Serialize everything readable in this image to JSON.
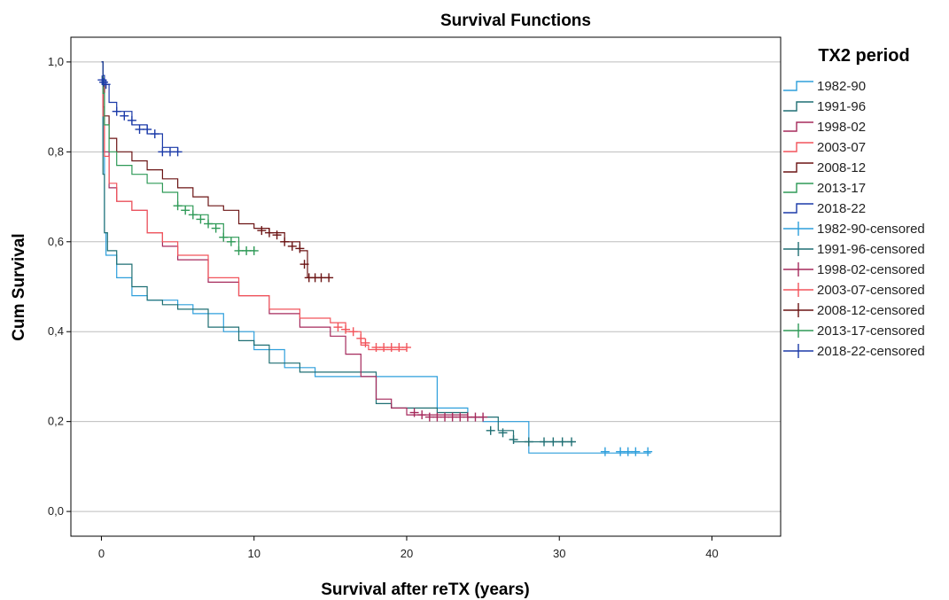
{
  "chart_data": {
    "type": "line",
    "title": "Survival Functions",
    "xlabel": "Survival after reTX (years)",
    "ylabel": "Cum Survival",
    "xlim": [
      -2,
      44.5
    ],
    "ylim": [
      -0.055,
      1.055
    ],
    "xticks": [
      0,
      10,
      20,
      30,
      40
    ],
    "xtick_labels": [
      "0",
      "10",
      "20",
      "30",
      "40"
    ],
    "yticks": [
      0,
      0.2,
      0.4,
      0.6,
      0.8,
      1.0
    ],
    "ytick_labels": [
      "0,0",
      "0,2",
      "0,4",
      "0,6",
      "0,8",
      "1,0"
    ],
    "grid": "horizontal",
    "legend": {
      "title": "TX2 period",
      "position": "right"
    },
    "series": [
      {
        "name": "1982-90",
        "color": "#2e9fdc",
        "x": [
          0,
          0.1,
          0.2,
          0.3,
          0.6,
          1,
          2,
          3,
          5,
          6,
          8,
          10,
          12,
          14,
          18,
          22,
          24,
          25,
          28,
          36
        ],
        "y": [
          1.0,
          0.8,
          0.62,
          0.57,
          0.57,
          0.52,
          0.48,
          0.47,
          0.46,
          0.44,
          0.4,
          0.36,
          0.32,
          0.3,
          0.3,
          0.23,
          0.21,
          0.2,
          0.13,
          0.13
        ],
        "censored": [
          [
            33,
            0.133
          ],
          [
            34,
            0.133
          ],
          [
            34.5,
            0.133
          ],
          [
            35,
            0.133
          ],
          [
            35.8,
            0.133
          ]
        ]
      },
      {
        "name": "1991-96",
        "color": "#1f6f73",
        "x": [
          0,
          0.1,
          0.2,
          0.4,
          1,
          2,
          3,
          4,
          5,
          7,
          9,
          10,
          11,
          13,
          16,
          18,
          19,
          22,
          24,
          26,
          27,
          31
        ],
        "y": [
          1.0,
          0.75,
          0.62,
          0.58,
          0.55,
          0.5,
          0.47,
          0.46,
          0.45,
          0.41,
          0.38,
          0.37,
          0.33,
          0.31,
          0.31,
          0.24,
          0.23,
          0.22,
          0.21,
          0.18,
          0.155,
          0.155
        ],
        "censored": [
          [
            25.5,
            0.18
          ],
          [
            26.3,
            0.175
          ],
          [
            27,
            0.16
          ],
          [
            28,
            0.155
          ],
          [
            29,
            0.155
          ],
          [
            29.6,
            0.155
          ],
          [
            30.2,
            0.155
          ],
          [
            30.8,
            0.155
          ]
        ]
      },
      {
        "name": "1998-02",
        "color": "#a62a5c",
        "x": [
          0,
          0.1,
          0.2,
          0.5,
          1,
          2,
          3,
          4,
          5,
          7,
          9,
          11,
          13,
          14,
          15,
          16,
          17,
          18,
          19,
          20,
          24,
          25
        ],
        "y": [
          1.0,
          0.9,
          0.8,
          0.72,
          0.69,
          0.67,
          0.62,
          0.59,
          0.56,
          0.51,
          0.48,
          0.44,
          0.41,
          0.41,
          0.39,
          0.35,
          0.3,
          0.25,
          0.23,
          0.215,
          0.21,
          0.21
        ],
        "censored": [
          [
            20.5,
            0.22
          ],
          [
            21,
            0.215
          ],
          [
            21.5,
            0.21
          ],
          [
            22,
            0.21
          ],
          [
            22.5,
            0.21
          ],
          [
            23,
            0.21
          ],
          [
            23.5,
            0.21
          ],
          [
            24,
            0.21
          ],
          [
            24.5,
            0.21
          ],
          [
            25,
            0.21
          ]
        ]
      },
      {
        "name": "2003-07",
        "color": "#f2545b",
        "x": [
          0,
          0.1,
          0.2,
          0.5,
          1,
          2,
          3,
          4,
          5,
          7,
          9,
          11,
          13,
          15,
          16,
          17,
          17.5,
          20
        ],
        "y": [
          1.0,
          0.88,
          0.79,
          0.73,
          0.69,
          0.67,
          0.62,
          0.6,
          0.57,
          0.52,
          0.48,
          0.45,
          0.43,
          0.42,
          0.4,
          0.37,
          0.36,
          0.36
        ],
        "censored": [
          [
            15.5,
            0.41
          ],
          [
            16,
            0.405
          ],
          [
            16.5,
            0.4
          ],
          [
            17,
            0.385
          ],
          [
            17.3,
            0.375
          ],
          [
            18,
            0.365
          ],
          [
            18.5,
            0.365
          ],
          [
            19,
            0.365
          ],
          [
            19.5,
            0.365
          ],
          [
            20,
            0.365
          ]
        ]
      },
      {
        "name": "2008-12",
        "color": "#6b1414",
        "x": [
          0,
          0.1,
          0.2,
          0.5,
          1,
          2,
          3,
          4,
          5,
          6,
          7,
          8,
          9,
          10,
          11,
          12,
          13,
          13.5,
          15
        ],
        "y": [
          1.0,
          0.95,
          0.88,
          0.83,
          0.8,
          0.78,
          0.76,
          0.74,
          0.72,
          0.7,
          0.68,
          0.67,
          0.64,
          0.63,
          0.62,
          0.6,
          0.58,
          0.52,
          0.52
        ],
        "censored": [
          [
            10.5,
            0.625
          ],
          [
            11,
            0.62
          ],
          [
            11.5,
            0.615
          ],
          [
            12,
            0.6
          ],
          [
            12.5,
            0.59
          ],
          [
            13,
            0.585
          ],
          [
            13.3,
            0.55
          ],
          [
            13.6,
            0.52
          ],
          [
            14,
            0.52
          ],
          [
            14.4,
            0.52
          ],
          [
            14.9,
            0.52
          ]
        ]
      },
      {
        "name": "2013-17",
        "color": "#2f9a57",
        "x": [
          0,
          0.1,
          0.2,
          0.5,
          1,
          2,
          3,
          4,
          5,
          6,
          7,
          8,
          9,
          10
        ],
        "y": [
          1.0,
          0.93,
          0.86,
          0.8,
          0.77,
          0.75,
          0.73,
          0.71,
          0.68,
          0.66,
          0.64,
          0.61,
          0.58,
          0.58
        ],
        "censored": [
          [
            5,
            0.68
          ],
          [
            5.5,
            0.67
          ],
          [
            6,
            0.66
          ],
          [
            6.5,
            0.65
          ],
          [
            7,
            0.64
          ],
          [
            7.5,
            0.63
          ],
          [
            8,
            0.61
          ],
          [
            8.5,
            0.6
          ],
          [
            9,
            0.58
          ],
          [
            9.5,
            0.58
          ],
          [
            10,
            0.58
          ]
        ]
      },
      {
        "name": "2018-22",
        "color": "#1b3aa8",
        "x": [
          0,
          0.1,
          0.2,
          0.5,
          1,
          2,
          3,
          4,
          5
        ],
        "y": [
          1.0,
          0.97,
          0.95,
          0.91,
          0.89,
          0.86,
          0.84,
          0.81,
          0.8
        ],
        "censored": [
          [
            0.05,
            0.96
          ],
          [
            0.15,
            0.955
          ],
          [
            0.3,
            0.95
          ],
          [
            1,
            0.89
          ],
          [
            1.5,
            0.88
          ],
          [
            2,
            0.87
          ],
          [
            2.5,
            0.85
          ],
          [
            3,
            0.85
          ],
          [
            3.5,
            0.84
          ],
          [
            4,
            0.8
          ],
          [
            4.5,
            0.8
          ],
          [
            5,
            0.8
          ]
        ]
      }
    ],
    "legend_entries": [
      "1982-90",
      "1991-96",
      "1998-02",
      "2003-07",
      "2008-12",
      "2013-17",
      "2018-22",
      "1982-90-censored",
      "1991-96-censored",
      "1998-02-censored",
      "2003-07-censored",
      "2008-12-censored",
      "2013-17-censored",
      "2018-22-censored"
    ]
  }
}
